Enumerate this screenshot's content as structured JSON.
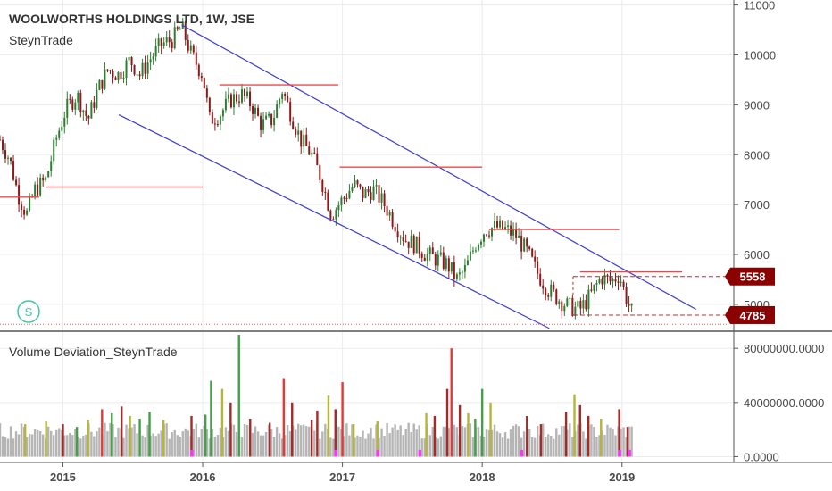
{
  "header": {
    "title": "WOOLWORTHS HOLDINGS LTD, 1W, JSE",
    "author": "SteynTrade",
    "logo_letter": "S"
  },
  "price_pane": {
    "y_ticks": [
      5000,
      6000,
      7000,
      8000,
      9000,
      10000,
      11000
    ],
    "ylim": [
      4480,
      11100
    ],
    "price_tags": [
      {
        "label": "5558",
        "value": 5558
      },
      {
        "label": "4785",
        "value": 4785
      }
    ]
  },
  "volume_pane": {
    "label": "Volume Deviation_SteynTrade",
    "y_ticks": [
      {
        "label": "0.0000",
        "value": 0
      },
      {
        "label": "40000000.0000",
        "value": 40000000
      },
      {
        "label": "80000000.0000",
        "value": 80000000
      }
    ],
    "ylim": [
      -3000000,
      92000000
    ]
  },
  "x_axis": {
    "ticks": [
      {
        "label": "2015",
        "x": 2015.0
      },
      {
        "label": "2016",
        "x": 2016.0
      },
      {
        "label": "2017",
        "x": 2017.0
      },
      {
        "label": "2018",
        "x": 2018.0
      },
      {
        "label": "2019",
        "x": 2019.0
      }
    ],
    "xlim": [
      2014.55,
      2019.8
    ]
  },
  "colors": {
    "up_candle": "#2e7d32",
    "down_candle": "#8b1a1a",
    "channel": "#3b3bd6",
    "resistance": "#e84a4a",
    "tag_bg": "#8b0000",
    "vol_grey": "#b5b5b5",
    "vol_green": "#43a047",
    "vol_red": "#e53935",
    "vol_darkred": "#a52a2a",
    "vol_olive": "#b5b53a",
    "vol_magenta": "#ff33ff"
  },
  "chart_data": {
    "type": "candlestick",
    "title": "WOOLWORTHS HOLDINGS LTD, 1W, JSE",
    "x_unit": "year",
    "ylim": [
      4480,
      11100
    ],
    "price_path": [
      [
        2014.55,
        8300
      ],
      [
        2014.62,
        7900
      ],
      [
        2014.68,
        7200
      ],
      [
        2014.74,
        6800
      ],
      [
        2014.8,
        7300
      ],
      [
        2014.88,
        7500
      ],
      [
        2014.95,
        8300
      ],
      [
        2015.02,
        8900
      ],
      [
        2015.1,
        9200
      ],
      [
        2015.18,
        8700
      ],
      [
        2015.25,
        9300
      ],
      [
        2015.32,
        9700
      ],
      [
        2015.4,
        9600
      ],
      [
        2015.48,
        9900
      ],
      [
        2015.55,
        9600
      ],
      [
        2015.62,
        9900
      ],
      [
        2015.7,
        10200
      ],
      [
        2015.78,
        10300
      ],
      [
        2015.85,
        10550
      ],
      [
        2015.92,
        10000
      ],
      [
        2016.0,
        9600
      ],
      [
        2016.05,
        8700
      ],
      [
        2016.12,
        8800
      ],
      [
        2016.2,
        9100
      ],
      [
        2016.28,
        9200
      ],
      [
        2016.35,
        9000
      ],
      [
        2016.42,
        8600
      ],
      [
        2016.5,
        8700
      ],
      [
        2016.57,
        9300
      ],
      [
        2016.62,
        8900
      ],
      [
        2016.7,
        8300
      ],
      [
        2016.78,
        8000
      ],
      [
        2016.85,
        7500
      ],
      [
        2016.92,
        6800
      ],
      [
        2017.0,
        7100
      ],
      [
        2017.08,
        7400
      ],
      [
        2017.15,
        7200
      ],
      [
        2017.22,
        7300
      ],
      [
        2017.3,
        7000
      ],
      [
        2017.38,
        6600
      ],
      [
        2017.45,
        6300
      ],
      [
        2017.52,
        6200
      ],
      [
        2017.6,
        6000
      ],
      [
        2017.68,
        5900
      ],
      [
        2017.75,
        5800
      ],
      [
        2017.82,
        5500
      ],
      [
        2017.88,
        5700
      ],
      [
        2017.95,
        6200
      ],
      [
        2018.02,
        6500
      ],
      [
        2018.1,
        6550
      ],
      [
        2018.17,
        6500
      ],
      [
        2018.25,
        6350
      ],
      [
        2018.33,
        6000
      ],
      [
        2018.4,
        5600
      ],
      [
        2018.47,
        5300
      ],
      [
        2018.55,
        5100
      ],
      [
        2018.62,
        4950
      ],
      [
        2018.7,
        4900
      ],
      [
        2018.78,
        5200
      ],
      [
        2018.85,
        5550
      ],
      [
        2018.92,
        5450
      ],
      [
        2018.98,
        5600
      ],
      [
        2019.04,
        5050
      ],
      [
        2019.08,
        4785
      ]
    ],
    "channel_upper": [
      [
        2015.85,
        10600
      ],
      [
        2019.53,
        4900
      ]
    ],
    "channel_lower": [
      [
        2015.4,
        8800
      ],
      [
        2018.48,
        4520
      ]
    ],
    "support_resistance": [
      {
        "y": 7150,
        "x0": 2014.55,
        "x1": 2014.83
      },
      {
        "y": 7350,
        "x0": 2014.88,
        "x1": 2016.0
      },
      {
        "y": 9400,
        "x0": 2016.12,
        "x1": 2016.97
      },
      {
        "y": 7750,
        "x0": 2016.98,
        "x1": 2018.0
      },
      {
        "y": 6500,
        "x0": 2018.05,
        "x1": 2018.98
      },
      {
        "y": 5650,
        "x0": 2018.7,
        "x1": 2019.43
      }
    ],
    "dashed_levels": [
      {
        "y": 5558,
        "x0": 2018.65,
        "x1": 2019.75
      },
      {
        "y": 4785,
        "x0": 2018.65,
        "x1": 2019.75
      },
      {
        "y": 4600,
        "x0": 2014.55,
        "x1": 2019.75
      }
    ],
    "volume": {
      "ylim": [
        -3000000,
        92000000
      ],
      "baseline_low": 13000000,
      "baseline_high": 25000000,
      "spikes": [
        {
          "x": 2014.73,
          "v": 24000000,
          "c": "olive"
        },
        {
          "x": 2014.88,
          "v": 26000000,
          "c": "olive"
        },
        {
          "x": 2015.0,
          "v": 24000000,
          "c": "darkred"
        },
        {
          "x": 2015.1,
          "v": 22000000,
          "c": "green"
        },
        {
          "x": 2015.18,
          "v": 27000000,
          "c": "olive"
        },
        {
          "x": 2015.28,
          "v": 35000000,
          "c": "red"
        },
        {
          "x": 2015.35,
          "v": 32000000,
          "c": "green"
        },
        {
          "x": 2015.42,
          "v": 37000000,
          "c": "darkred"
        },
        {
          "x": 2015.48,
          "v": 30000000,
          "c": "olive"
        },
        {
          "x": 2015.55,
          "v": 28000000,
          "c": "green"
        },
        {
          "x": 2015.62,
          "v": 33000000,
          "c": "green"
        },
        {
          "x": 2015.72,
          "v": 27000000,
          "c": "olive"
        },
        {
          "x": 2015.92,
          "v": 30000000,
          "c": "darkred"
        },
        {
          "x": 2016.02,
          "v": 31000000,
          "c": "green"
        },
        {
          "x": 2016.06,
          "v": 56000000,
          "c": "green"
        },
        {
          "x": 2016.14,
          "v": 50000000,
          "c": "olive"
        },
        {
          "x": 2016.2,
          "v": 40000000,
          "c": "darkred"
        },
        {
          "x": 2016.26,
          "v": 90000000,
          "c": "green"
        },
        {
          "x": 2016.34,
          "v": 28000000,
          "c": "darkred"
        },
        {
          "x": 2016.48,
          "v": 25000000,
          "c": "darkred"
        },
        {
          "x": 2016.58,
          "v": 58000000,
          "c": "red"
        },
        {
          "x": 2016.64,
          "v": 40000000,
          "c": "darkred"
        },
        {
          "x": 2016.78,
          "v": 27000000,
          "c": "darkred"
        },
        {
          "x": 2016.82,
          "v": 34000000,
          "c": "darkred"
        },
        {
          "x": 2016.9,
          "v": 45000000,
          "c": "olive"
        },
        {
          "x": 2016.95,
          "v": 35000000,
          "c": "darkred"
        },
        {
          "x": 2017.0,
          "v": 55000000,
          "c": "red"
        },
        {
          "x": 2017.08,
          "v": 24000000,
          "c": "olive"
        },
        {
          "x": 2017.25,
          "v": 26000000,
          "c": "olive"
        },
        {
          "x": 2017.6,
          "v": 32000000,
          "c": "olive"
        },
        {
          "x": 2017.66,
          "v": 30000000,
          "c": "darkred"
        },
        {
          "x": 2017.75,
          "v": 50000000,
          "c": "darkred"
        },
        {
          "x": 2017.78,
          "v": 80000000,
          "c": "red"
        },
        {
          "x": 2017.84,
          "v": 38000000,
          "c": "darkred"
        },
        {
          "x": 2017.9,
          "v": 32000000,
          "c": "olive"
        },
        {
          "x": 2017.95,
          "v": 28000000,
          "c": "green"
        },
        {
          "x": 2018.0,
          "v": 50000000,
          "c": "green"
        },
        {
          "x": 2018.06,
          "v": 40000000,
          "c": "olive"
        },
        {
          "x": 2018.32,
          "v": 30000000,
          "c": "darkred"
        },
        {
          "x": 2018.42,
          "v": 24000000,
          "c": "darkred"
        },
        {
          "x": 2018.6,
          "v": 33000000,
          "c": "darkred"
        },
        {
          "x": 2018.66,
          "v": 46000000,
          "c": "olive"
        },
        {
          "x": 2018.7,
          "v": 38000000,
          "c": "darkred"
        },
        {
          "x": 2018.76,
          "v": 30000000,
          "c": "darkred"
        },
        {
          "x": 2018.85,
          "v": 28000000,
          "c": "olive"
        },
        {
          "x": 2018.98,
          "v": 35000000,
          "c": "darkred"
        },
        {
          "x": 2019.04,
          "v": 22000000,
          "c": "darkred"
        }
      ],
      "magenta": [
        2015.92,
        2016.95,
        2017.25,
        2017.55,
        2018.28,
        2018.98,
        2019.05
      ]
    }
  }
}
